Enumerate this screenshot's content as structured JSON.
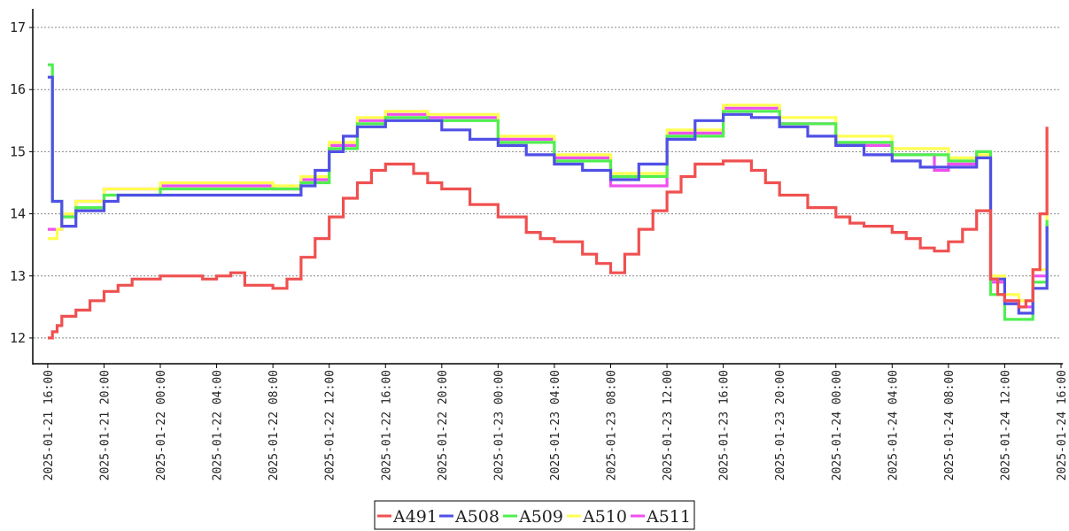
{
  "chart_data": {
    "type": "line",
    "title": "",
    "xlabel": "",
    "ylabel": "",
    "ylim": [
      11.6,
      17.3
    ],
    "xlim": [
      "2025-01-21 15:00",
      "2025-01-24 16:00"
    ],
    "grid": "horizontal dotted",
    "legend_position": "bottom-center",
    "y_ticks": [
      "12",
      "13",
      "14",
      "15",
      "16",
      "17"
    ],
    "x_ticks": [
      "2025-01-21 16:00",
      "2025-01-21 20:00",
      "2025-01-22 00:00",
      "2025-01-22 04:00",
      "2025-01-22 08:00",
      "2025-01-22 12:00",
      "2025-01-22 16:00",
      "2025-01-22 20:00",
      "2025-01-23 00:00",
      "2025-01-23 04:00",
      "2025-01-23 08:00",
      "2025-01-23 12:00",
      "2025-01-23 16:00",
      "2025-01-23 20:00",
      "2025-01-24 00:00",
      "2025-01-24 04:00",
      "2025-01-24 08:00",
      "2025-01-24 12:00",
      "2025-01-24 16:00"
    ],
    "series": [
      {
        "name": "A491",
        "color": "#f05050",
        "points": [
          [
            "2025-01-21 16:00",
            12.0
          ],
          [
            "2025-01-21 16:20",
            12.1
          ],
          [
            "2025-01-21 16:40",
            12.2
          ],
          [
            "2025-01-21 17:00",
            12.35
          ],
          [
            "2025-01-21 18:00",
            12.45
          ],
          [
            "2025-01-21 19:00",
            12.6
          ],
          [
            "2025-01-21 20:00",
            12.75
          ],
          [
            "2025-01-21 21:00",
            12.85
          ],
          [
            "2025-01-21 22:00",
            12.95
          ],
          [
            "2025-01-22 00:00",
            13.0
          ],
          [
            "2025-01-22 02:00",
            13.0
          ],
          [
            "2025-01-22 03:00",
            12.95
          ],
          [
            "2025-01-22 04:00",
            13.0
          ],
          [
            "2025-01-22 05:00",
            13.05
          ],
          [
            "2025-01-22 06:00",
            12.85
          ],
          [
            "2025-01-22 08:00",
            12.8
          ],
          [
            "2025-01-22 09:00",
            12.95
          ],
          [
            "2025-01-22 10:00",
            13.3
          ],
          [
            "2025-01-22 11:00",
            13.6
          ],
          [
            "2025-01-22 12:00",
            13.95
          ],
          [
            "2025-01-22 13:00",
            14.25
          ],
          [
            "2025-01-22 14:00",
            14.5
          ],
          [
            "2025-01-22 15:00",
            14.7
          ],
          [
            "2025-01-22 16:00",
            14.8
          ],
          [
            "2025-01-22 17:00",
            14.8
          ],
          [
            "2025-01-22 18:00",
            14.65
          ],
          [
            "2025-01-22 19:00",
            14.5
          ],
          [
            "2025-01-22 20:00",
            14.4
          ],
          [
            "2025-01-22 22:00",
            14.15
          ],
          [
            "2025-01-23 00:00",
            13.95
          ],
          [
            "2025-01-23 02:00",
            13.7
          ],
          [
            "2025-01-23 03:00",
            13.6
          ],
          [
            "2025-01-23 04:00",
            13.55
          ],
          [
            "2025-01-23 05:00",
            13.55
          ],
          [
            "2025-01-23 06:00",
            13.35
          ],
          [
            "2025-01-23 07:00",
            13.2
          ],
          [
            "2025-01-23 08:00",
            13.05
          ],
          [
            "2025-01-23 09:00",
            13.35
          ],
          [
            "2025-01-23 10:00",
            13.75
          ],
          [
            "2025-01-23 11:00",
            14.05
          ],
          [
            "2025-01-23 12:00",
            14.35
          ],
          [
            "2025-01-23 13:00",
            14.6
          ],
          [
            "2025-01-23 14:00",
            14.8
          ],
          [
            "2025-01-23 16:00",
            14.85
          ],
          [
            "2025-01-23 17:00",
            14.85
          ],
          [
            "2025-01-23 18:00",
            14.7
          ],
          [
            "2025-01-23 19:00",
            14.5
          ],
          [
            "2025-01-23 20:00",
            14.3
          ],
          [
            "2025-01-23 22:00",
            14.1
          ],
          [
            "2025-01-24 00:00",
            13.95
          ],
          [
            "2025-01-24 01:00",
            13.85
          ],
          [
            "2025-01-24 02:00",
            13.8
          ],
          [
            "2025-01-24 04:00",
            13.7
          ],
          [
            "2025-01-24 05:00",
            13.6
          ],
          [
            "2025-01-24 06:00",
            13.45
          ],
          [
            "2025-01-24 07:00",
            13.4
          ],
          [
            "2025-01-24 08:00",
            13.55
          ],
          [
            "2025-01-24 09:00",
            13.75
          ],
          [
            "2025-01-24 10:00",
            14.05
          ],
          [
            "2025-01-24 11:00",
            12.95
          ],
          [
            "2025-01-24 11:30",
            12.7
          ],
          [
            "2025-01-24 12:00",
            12.6
          ],
          [
            "2025-01-24 13:00",
            12.5
          ],
          [
            "2025-01-24 13:30",
            12.6
          ],
          [
            "2025-01-24 14:00",
            13.1
          ],
          [
            "2025-01-24 14:30",
            14.0
          ],
          [
            "2025-01-24 15:00",
            15.4
          ]
        ]
      },
      {
        "name": "A508",
        "color": "#5050e6",
        "points": [
          [
            "2025-01-21 16:00",
            16.2
          ],
          [
            "2025-01-21 16:20",
            14.2
          ],
          [
            "2025-01-21 17:00",
            13.8
          ],
          [
            "2025-01-21 18:00",
            14.05
          ],
          [
            "2025-01-21 20:00",
            14.2
          ],
          [
            "2025-01-21 21:00",
            14.3
          ],
          [
            "2025-01-22 00:00",
            14.3
          ],
          [
            "2025-01-22 08:00",
            14.3
          ],
          [
            "2025-01-22 10:00",
            14.45
          ],
          [
            "2025-01-22 11:00",
            14.7
          ],
          [
            "2025-01-22 12:00",
            15.0
          ],
          [
            "2025-01-22 13:00",
            15.25
          ],
          [
            "2025-01-22 14:00",
            15.4
          ],
          [
            "2025-01-22 16:00",
            15.5
          ],
          [
            "2025-01-22 19:00",
            15.5
          ],
          [
            "2025-01-22 20:00",
            15.35
          ],
          [
            "2025-01-22 22:00",
            15.2
          ],
          [
            "2025-01-23 00:00",
            15.1
          ],
          [
            "2025-01-23 02:00",
            14.95
          ],
          [
            "2025-01-23 04:00",
            14.8
          ],
          [
            "2025-01-23 06:00",
            14.7
          ],
          [
            "2025-01-23 08:00",
            14.55
          ],
          [
            "2025-01-23 10:00",
            14.8
          ],
          [
            "2025-01-23 12:00",
            15.2
          ],
          [
            "2025-01-23 14:00",
            15.5
          ],
          [
            "2025-01-23 16:00",
            15.6
          ],
          [
            "2025-01-23 18:00",
            15.55
          ],
          [
            "2025-01-23 20:00",
            15.4
          ],
          [
            "2025-01-23 22:00",
            15.25
          ],
          [
            "2025-01-24 00:00",
            15.1
          ],
          [
            "2025-01-24 02:00",
            14.95
          ],
          [
            "2025-01-24 04:00",
            14.85
          ],
          [
            "2025-01-24 06:00",
            14.75
          ],
          [
            "2025-01-24 09:00",
            14.75
          ],
          [
            "2025-01-24 10:00",
            14.9
          ],
          [
            "2025-01-24 11:00",
            12.95
          ],
          [
            "2025-01-24 12:00",
            12.55
          ],
          [
            "2025-01-24 13:00",
            12.4
          ],
          [
            "2025-01-24 14:00",
            12.8
          ],
          [
            "2025-01-24 15:00",
            13.8
          ]
        ]
      },
      {
        "name": "A509",
        "color": "#50ee50",
        "points": [
          [
            "2025-01-21 16:00",
            16.4
          ],
          [
            "2025-01-21 16:20",
            14.2
          ],
          [
            "2025-01-21 17:00",
            13.95
          ],
          [
            "2025-01-21 18:00",
            14.1
          ],
          [
            "2025-01-21 20:00",
            14.3
          ],
          [
            "2025-01-22 00:00",
            14.4
          ],
          [
            "2025-01-22 08:00",
            14.4
          ],
          [
            "2025-01-22 10:00",
            14.5
          ],
          [
            "2025-01-22 12:00",
            15.05
          ],
          [
            "2025-01-22 14:00",
            15.45
          ],
          [
            "2025-01-22 16:00",
            15.55
          ],
          [
            "2025-01-22 19:00",
            15.5
          ],
          [
            "2025-01-23 00:00",
            15.15
          ],
          [
            "2025-01-23 04:00",
            14.85
          ],
          [
            "2025-01-23 08:00",
            14.6
          ],
          [
            "2025-01-23 12:00",
            15.25
          ],
          [
            "2025-01-23 16:00",
            15.65
          ],
          [
            "2025-01-23 20:00",
            15.45
          ],
          [
            "2025-01-24 00:00",
            15.15
          ],
          [
            "2025-01-24 04:00",
            14.95
          ],
          [
            "2025-01-24 08:00",
            14.85
          ],
          [
            "2025-01-24 10:00",
            15.0
          ],
          [
            "2025-01-24 11:00",
            12.7
          ],
          [
            "2025-01-24 12:00",
            12.3
          ],
          [
            "2025-01-24 13:00",
            12.3
          ],
          [
            "2025-01-24 14:00",
            12.9
          ],
          [
            "2025-01-24 15:00",
            13.9
          ]
        ]
      },
      {
        "name": "A510",
        "color": "#ffff50",
        "points": [
          [
            "2025-01-21 16:00",
            13.6
          ],
          [
            "2025-01-21 16:40",
            13.75
          ],
          [
            "2025-01-21 17:00",
            14.0
          ],
          [
            "2025-01-21 18:00",
            14.2
          ],
          [
            "2025-01-21 20:00",
            14.4
          ],
          [
            "2025-01-22 00:00",
            14.5
          ],
          [
            "2025-01-22 08:00",
            14.45
          ],
          [
            "2025-01-22 10:00",
            14.6
          ],
          [
            "2025-01-22 12:00",
            15.15
          ],
          [
            "2025-01-22 14:00",
            15.55
          ],
          [
            "2025-01-22 16:00",
            15.65
          ],
          [
            "2025-01-22 19:00",
            15.6
          ],
          [
            "2025-01-23 00:00",
            15.25
          ],
          [
            "2025-01-23 04:00",
            14.95
          ],
          [
            "2025-01-23 08:00",
            14.65
          ],
          [
            "2025-01-23 12:00",
            15.35
          ],
          [
            "2025-01-23 16:00",
            15.75
          ],
          [
            "2025-01-23 20:00",
            15.55
          ],
          [
            "2025-01-24 00:00",
            15.25
          ],
          [
            "2025-01-24 04:00",
            15.05
          ],
          [
            "2025-01-24 08:00",
            14.9
          ],
          [
            "2025-01-24 10:00",
            14.95
          ],
          [
            "2025-01-24 11:00",
            13.0
          ],
          [
            "2025-01-24 12:00",
            12.7
          ],
          [
            "2025-01-24 13:00",
            12.6
          ],
          [
            "2025-01-24 14:00",
            13.1
          ],
          [
            "2025-01-24 15:00",
            14.1
          ]
        ]
      },
      {
        "name": "A511",
        "color": "#ee50ee",
        "points": [
          [
            "2025-01-21 16:00",
            13.75
          ],
          [
            "2025-01-21 17:00",
            14.0
          ],
          [
            "2025-01-21 18:00",
            14.2
          ],
          [
            "2025-01-21 20:00",
            14.4
          ],
          [
            "2025-01-22 00:00",
            14.45
          ],
          [
            "2025-01-22 08:00",
            14.4
          ],
          [
            "2025-01-22 10:00",
            14.55
          ],
          [
            "2025-01-22 12:00",
            15.1
          ],
          [
            "2025-01-22 14:00",
            15.5
          ],
          [
            "2025-01-22 16:00",
            15.6
          ],
          [
            "2025-01-22 19:00",
            15.55
          ],
          [
            "2025-01-23 00:00",
            15.2
          ],
          [
            "2025-01-23 04:00",
            14.9
          ],
          [
            "2025-01-23 08:00",
            14.45
          ],
          [
            "2025-01-23 12:00",
            15.3
          ],
          [
            "2025-01-23 16:00",
            15.7
          ],
          [
            "2025-01-23 20:00",
            15.45
          ],
          [
            "2025-01-24 00:00",
            15.1
          ],
          [
            "2025-01-24 04:00",
            14.95
          ],
          [
            "2025-01-24 07:00",
            14.7
          ],
          [
            "2025-01-24 08:00",
            14.8
          ],
          [
            "2025-01-24 10:00",
            14.9
          ],
          [
            "2025-01-24 11:00",
            12.9
          ],
          [
            "2025-01-24 12:00",
            12.6
          ],
          [
            "2025-01-24 13:00",
            12.5
          ],
          [
            "2025-01-24 14:00",
            13.0
          ],
          [
            "2025-01-24 15:00",
            13.6
          ]
        ]
      }
    ]
  }
}
